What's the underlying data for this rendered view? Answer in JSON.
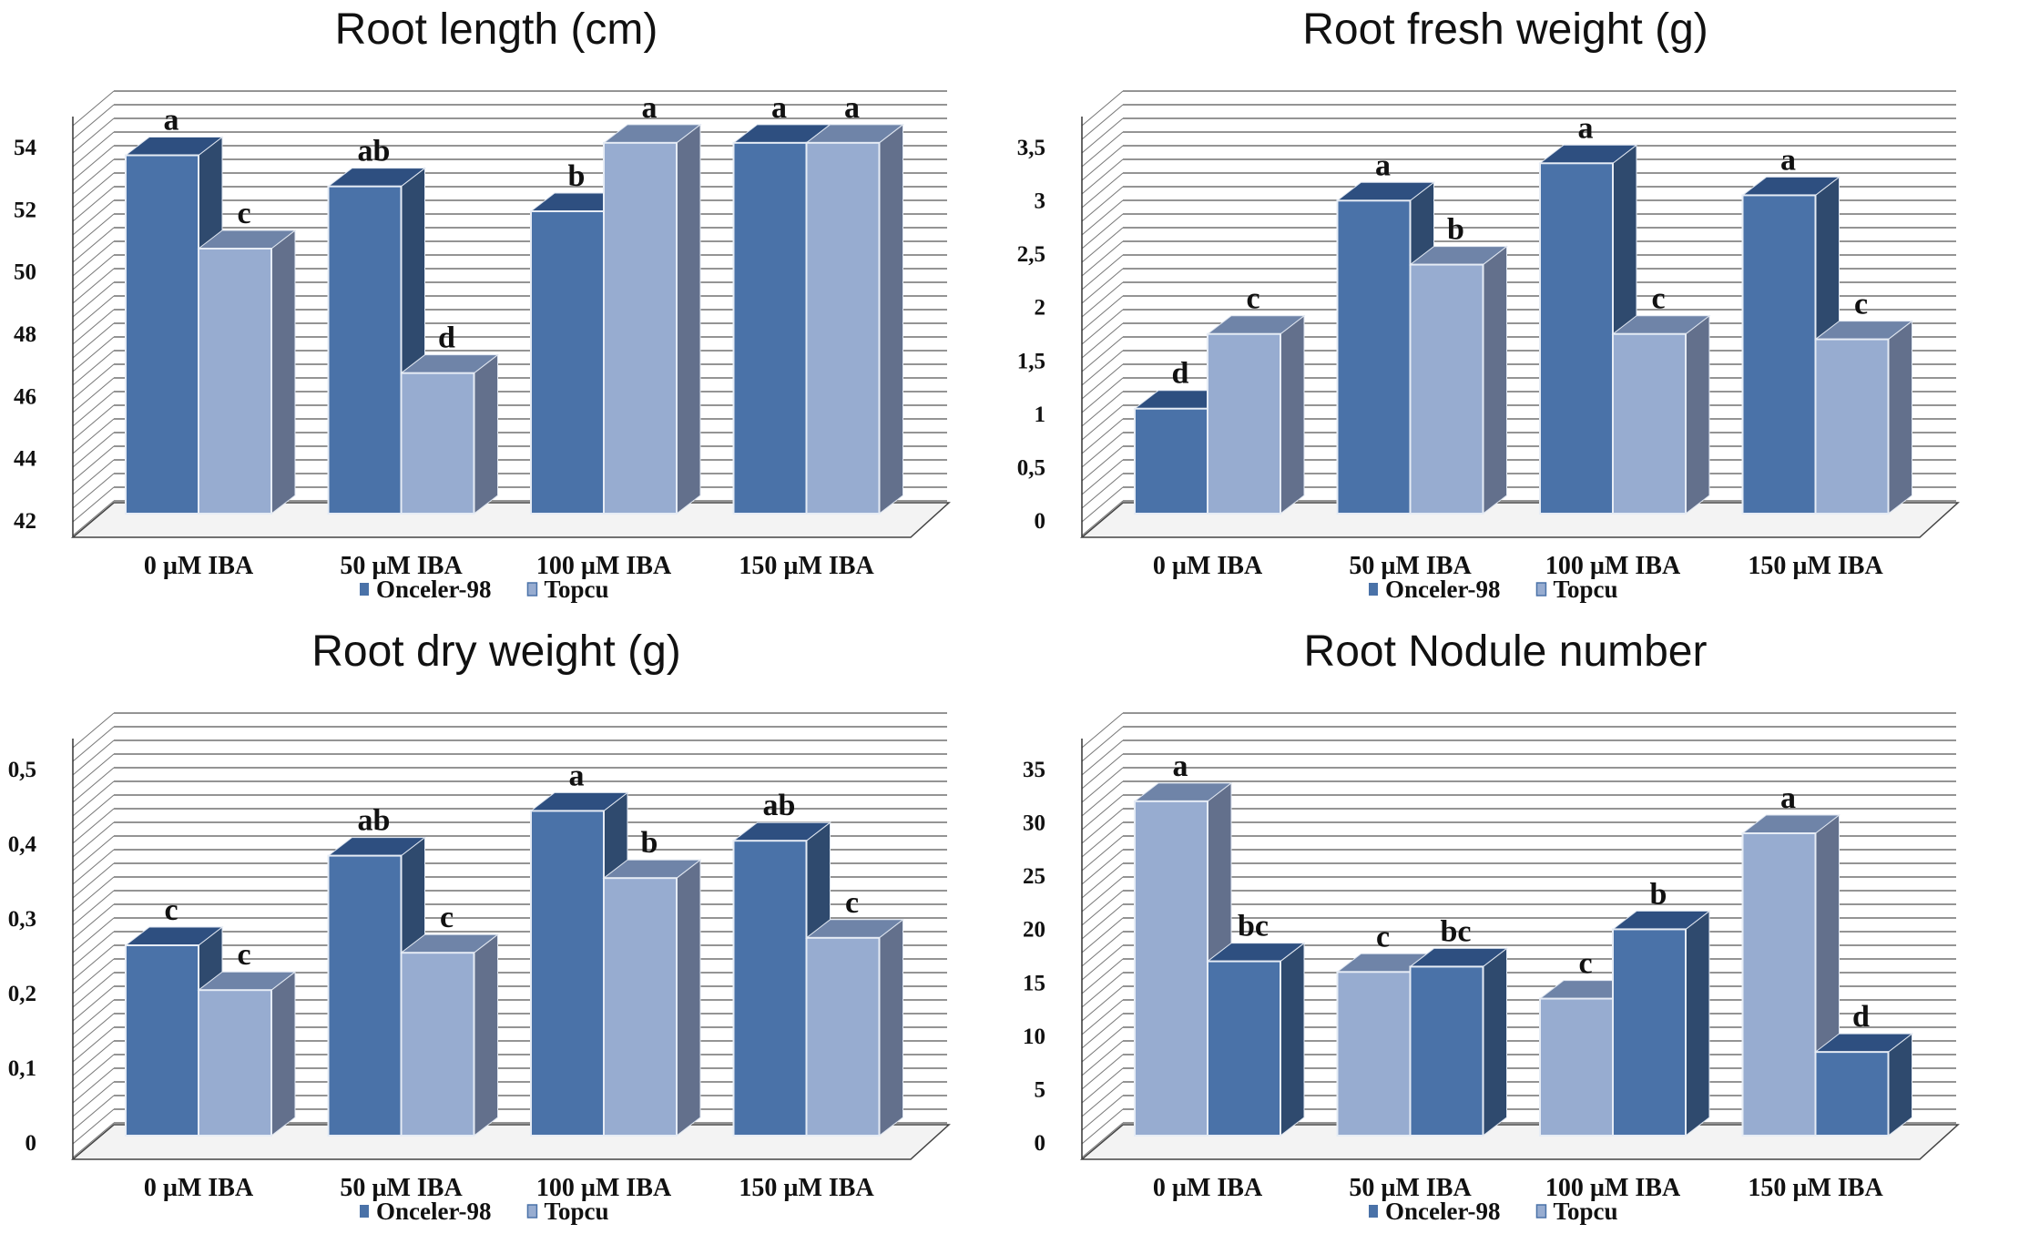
{
  "colors": {
    "dark": "#4a72a8",
    "dark_side": "#2f4a6e",
    "dark_top": "#2e4f80",
    "light": "#97acd0",
    "light_side": "#63708c",
    "light_top": "#6f84a8"
  },
  "legend": [
    {
      "name": "Onceler-98",
      "tone": "dark"
    },
    {
      "name": "Topcu",
      "tone": "light"
    }
  ],
  "chart_data": [
    {
      "type": "bar",
      "title": "Root length (cm)",
      "categories": [
        "0 µM IBA",
        "50 µM IBA",
        "100 µM IBA",
        "150 µM IBA"
      ],
      "ylim": [
        42,
        54
      ],
      "yticks": [
        "42",
        "44",
        "46",
        "48",
        "50",
        "52",
        "54"
      ],
      "ytick_values": [
        42,
        44,
        46,
        48,
        50,
        52,
        54
      ],
      "series": [
        {
          "name": "Onceler-98",
          "tone": "dark",
          "values": [
            53.4,
            52.4,
            51.6,
            53.8
          ],
          "letters": [
            "a",
            "ab",
            "b",
            "a"
          ]
        },
        {
          "name": "Topcu",
          "tone": "light",
          "values": [
            50.4,
            46.4,
            53.8,
            53.8
          ],
          "letters": [
            "c",
            "d",
            "a",
            "a"
          ]
        }
      ]
    },
    {
      "type": "bar",
      "title": "Root fresh weight (g)",
      "categories": [
        "0 µM IBA",
        "50 µM IBA",
        "100 µM IBA",
        "150 µM IBA"
      ],
      "ylim": [
        0,
        3.5
      ],
      "yticks": [
        "0",
        "0,5",
        "1",
        "1,5",
        "2",
        "2,5",
        "3",
        "3,5"
      ],
      "ytick_values": [
        0,
        0.5,
        1,
        1.5,
        2,
        2.5,
        3,
        3.5
      ],
      "series": [
        {
          "name": "Onceler-98",
          "tone": "dark",
          "values": [
            0.95,
            2.9,
            3.25,
            2.95
          ],
          "letters": [
            "d",
            "a",
            "a",
            "a"
          ]
        },
        {
          "name": "Topcu",
          "tone": "light",
          "values": [
            1.65,
            2.3,
            1.65,
            1.6
          ],
          "letters": [
            "c",
            "b",
            "c",
            "c"
          ]
        }
      ]
    },
    {
      "type": "bar",
      "title": "Root dry weight (g)",
      "categories": [
        "0 µM IBA",
        "50 µM IBA",
        "100 µM IBA",
        "150 µM IBA"
      ],
      "ylim": [
        0,
        0.5
      ],
      "yticks": [
        "0",
        "0,1",
        "0,2",
        "0,3",
        "0,4",
        "0,5"
      ],
      "ytick_values": [
        0,
        0.1,
        0.2,
        0.3,
        0.4,
        0.5
      ],
      "series": [
        {
          "name": "Onceler-98",
          "tone": "dark",
          "values": [
            0.25,
            0.37,
            0.43,
            0.39
          ],
          "letters": [
            "c",
            "ab",
            "a",
            "ab"
          ]
        },
        {
          "name": "Topcu",
          "tone": "light",
          "values": [
            0.19,
            0.24,
            0.34,
            0.26
          ],
          "letters": [
            "c",
            "c",
            "b",
            "c"
          ]
        }
      ]
    },
    {
      "type": "bar",
      "title": "Root Nodule number",
      "categories": [
        "0 µM IBA",
        "50 µM IBA",
        "100 µM IBA",
        "150 µM IBA"
      ],
      "ylim": [
        0,
        35
      ],
      "yticks": [
        "0",
        "5",
        "10",
        "15",
        "20",
        "25",
        "30",
        "35"
      ],
      "ytick_values": [
        0,
        5,
        10,
        15,
        20,
        25,
        30,
        35
      ],
      "series": [
        {
          "name": "Topcu",
          "tone": "light",
          "values": [
            31,
            15,
            12.5,
            28
          ],
          "letters": [
            "a",
            "c",
            "c",
            "a"
          ]
        },
        {
          "name": "Onceler-98",
          "tone": "dark",
          "values": [
            16,
            15.5,
            19,
            7.5
          ],
          "letters": [
            "bc",
            "bc",
            "b",
            "d"
          ]
        }
      ]
    }
  ]
}
